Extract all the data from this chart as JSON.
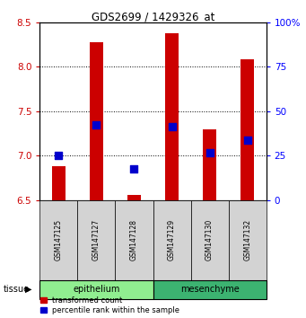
{
  "title": "GDS2699 / 1429326_at",
  "samples": [
    "GSM147125",
    "GSM147127",
    "GSM147128",
    "GSM147129",
    "GSM147130",
    "GSM147132"
  ],
  "red_values": [
    6.88,
    8.28,
    6.56,
    8.38,
    7.3,
    8.08
  ],
  "blue_values": [
    7.0,
    7.35,
    6.85,
    7.33,
    7.03,
    7.18
  ],
  "y_min": 6.5,
  "y_max": 8.5,
  "y_ticks_left": [
    6.5,
    7.0,
    7.5,
    8.0,
    8.5
  ],
  "y_ticks_right_labels": [
    "0",
    "25",
    "50",
    "75",
    "100%"
  ],
  "grid_lines": [
    7.0,
    7.5,
    8.0
  ],
  "groups": [
    {
      "name": "epithelium",
      "indices": [
        0,
        1,
        2
      ],
      "color": "#90EE90"
    },
    {
      "name": "mesenchyme",
      "indices": [
        3,
        4,
        5
      ],
      "color": "#3CB371"
    }
  ],
  "tissue_label": "tissue",
  "red_color": "#CC0000",
  "blue_color": "#0000CC",
  "bar_width": 0.35,
  "blue_square_size": 30,
  "legend_red": "transformed count",
  "legend_blue": "percentile rank within the sample",
  "sample_box_color": "#d3d3d3",
  "title_fontsize": 8.5,
  "tick_fontsize": 7.5,
  "sample_fontsize": 5.5,
  "tissue_fontsize": 7,
  "legend_fontsize": 6
}
